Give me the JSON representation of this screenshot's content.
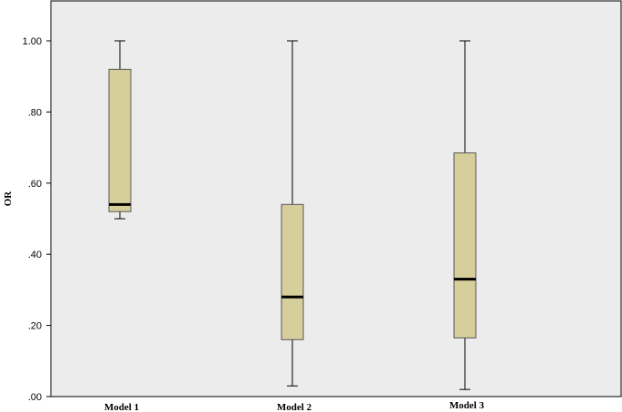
{
  "chart_data": {
    "type": "boxplot",
    "title": "",
    "xlabel": "",
    "ylabel": "OR",
    "ylim": [
      0,
      1
    ],
    "yticks": [
      0.0,
      0.2,
      0.4,
      0.6,
      0.8,
      1.0
    ],
    "ytick_labels": [
      ".00",
      ".20",
      ".40",
      ".60",
      ".80",
      "1.00"
    ],
    "grid": false,
    "colors": {
      "plot_background": "#ececec",
      "box_fill": "#d6cf9b",
      "box_stroke": "#555555",
      "median": "#000000"
    },
    "categories": [
      "Model 1",
      "Model 2",
      "Model 3"
    ],
    "boxes": [
      {
        "category": "Model 1",
        "min": 0.5,
        "q1": 0.52,
        "median": 0.54,
        "q3": 0.92,
        "max": 1.0
      },
      {
        "category": "Model 2",
        "min": 0.03,
        "q1": 0.16,
        "median": 0.28,
        "q3": 0.54,
        "max": 1.0
      },
      {
        "category": "Model 3",
        "min": 0.02,
        "q1": 0.165,
        "median": 0.33,
        "q3": 0.685,
        "max": 1.0
      }
    ]
  }
}
